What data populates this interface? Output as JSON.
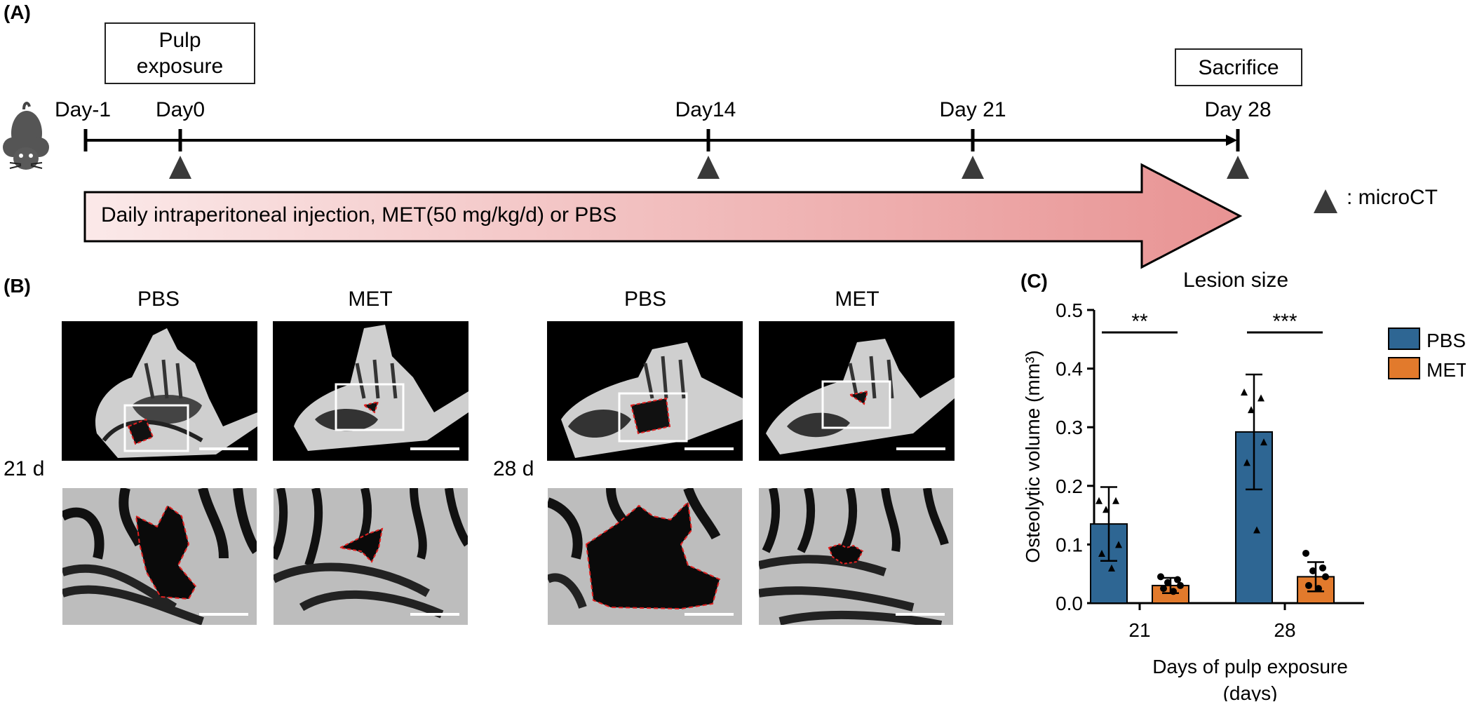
{
  "panel_a": {
    "label": "(A)",
    "boxes": {
      "pulp_exposure": [
        "Pulp",
        "exposure"
      ],
      "sacrifice": "Sacrifice"
    },
    "days": [
      "Day-1",
      "Day0",
      "Day14",
      "Day 21",
      "Day 28"
    ],
    "arrow_text": "Daily intraperitoneal injection, MET(50 mg/kg/d) or PBS",
    "legend": ": microCT",
    "icons": [
      "mouse-icon",
      "triangle-marker-icon"
    ],
    "colors": {
      "arrow_start": "#fbe9e9",
      "arrow_end": "#e89393",
      "marker": "#3a3a3a"
    }
  },
  "panel_b": {
    "label": "(B)",
    "groups": [
      {
        "row_label": "21 d",
        "columns": [
          "PBS",
          "MET"
        ]
      },
      {
        "row_label": "28 d",
        "columns": [
          "PBS",
          "MET"
        ]
      }
    ]
  },
  "panel_c": {
    "label": "(C)",
    "chart_data": {
      "type": "bar",
      "title": "Lesion size",
      "xlabel": [
        "Days of pulp exposure",
        "(days)"
      ],
      "ylabel": "Osteolytic volume (mm³)",
      "categories": [
        "21",
        "28"
      ],
      "ylim": [
        0,
        0.5
      ],
      "yticks": [
        "0.0",
        "0.1",
        "0.2",
        "0.3",
        "0.4",
        "0.5"
      ],
      "legend_placement": "right",
      "series": [
        {
          "name": "PBS",
          "color": "#2e6693",
          "values": [
            0.135,
            0.292
          ],
          "sd": [
            0.063,
            0.098
          ],
          "points": [
            [
              0.175,
              0.175,
              0.16,
              0.1,
              0.085,
              0.06
            ],
            [
              0.36,
              0.35,
              0.33,
              0.275,
              0.24,
              0.125
            ]
          ]
        },
        {
          "name": "MET",
          "color": "#e27a2c",
          "values": [
            0.03,
            0.045
          ],
          "sd": [
            0.013,
            0.025
          ],
          "points": [
            [
              0.045,
              0.04,
              0.035,
              0.03,
              0.025,
              0.02
            ],
            [
              0.085,
              0.06,
              0.055,
              0.045,
              0.03,
              0.025
            ]
          ]
        }
      ],
      "significance": [
        "**",
        "***"
      ]
    }
  }
}
